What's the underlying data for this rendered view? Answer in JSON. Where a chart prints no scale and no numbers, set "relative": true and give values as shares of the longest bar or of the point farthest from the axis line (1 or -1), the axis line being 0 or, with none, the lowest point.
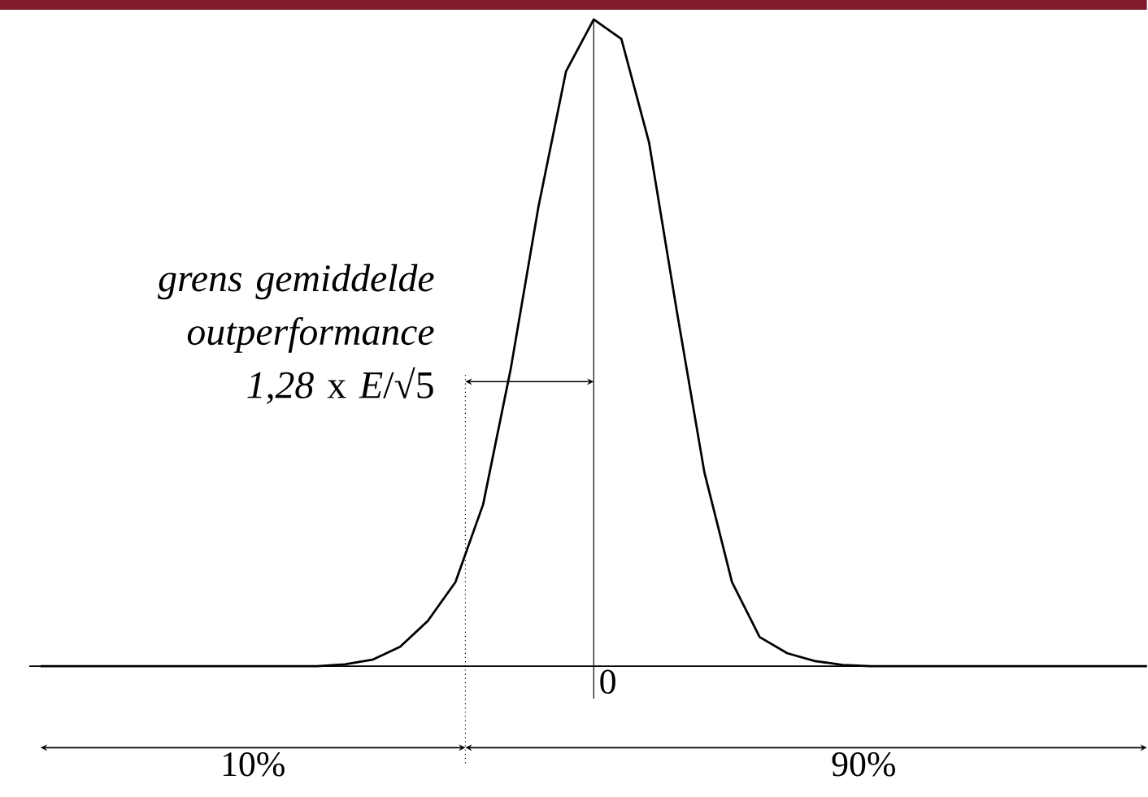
{
  "chart_data": {
    "type": "line",
    "relative": true,
    "marker": "none",
    "line_style": "solid",
    "categories": [
      null,
      null,
      null,
      null,
      null,
      null,
      null,
      null,
      null,
      null,
      null,
      null,
      null,
      null,
      null,
      null,
      null,
      null,
      null,
      null,
      null,
      null,
      null,
      null,
      null,
      null,
      null,
      null,
      null,
      null,
      null,
      null,
      null,
      null,
      null,
      null,
      null,
      null,
      null,
      null,
      null
    ],
    "series": [
      {
        "color": "#000000",
        "values": [
          0,
          0,
          0,
          0,
          0,
          0,
          0,
          0,
          0,
          0,
          0,
          0.003,
          0.01,
          0.03,
          0.07,
          0.13,
          0.25,
          0.46,
          0.71,
          0.92,
          1.0,
          0.97,
          0.81,
          0.55,
          0.3,
          0.13,
          0.045,
          0.02,
          0.008,
          0.002,
          0,
          0,
          0,
          0,
          0,
          0,
          0,
          0,
          0,
          0,
          0
        ]
      }
    ],
    "annotations": [
      "*grens gemiddelde outperformance 1,28* x *E*/√5",
      "0",
      "10%",
      "90%"
    ]
  }
}
